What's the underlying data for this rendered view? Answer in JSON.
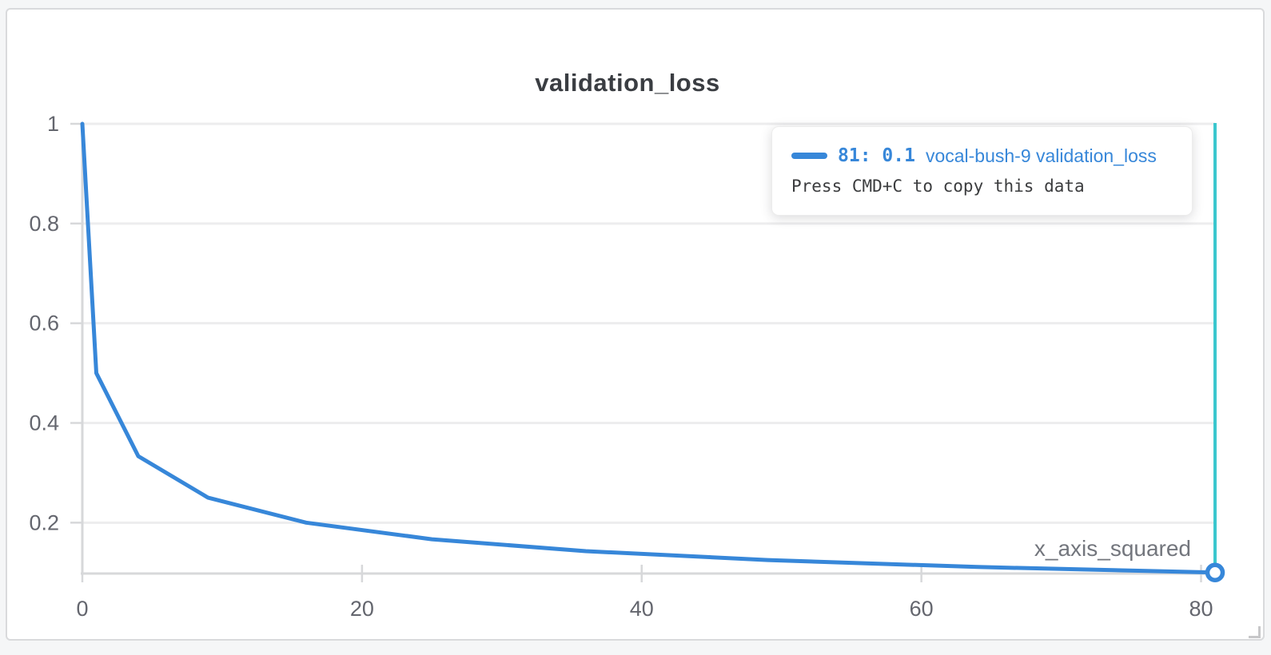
{
  "panel": {
    "title": "validation_loss"
  },
  "colors": {
    "line_blue": "#3787d9",
    "crosshair_cyan": "#3bc7ce",
    "grid": "#ededee",
    "axis": "#d7d8da",
    "tick_text": "#64666e"
  },
  "tooltip": {
    "value_text": "81: 0.1",
    "series_text": "vocal-bush-9 validation_loss",
    "hint": "Press CMD+C to copy this data",
    "swatch_color": "#3787d9",
    "text_color": "#3787d9"
  },
  "chart_data": {
    "type": "line",
    "title": "validation_loss",
    "xlabel": "x_axis_squared",
    "ylabel": "",
    "legend_position": "none",
    "grid": "horizontal",
    "xlim": [
      0,
      81
    ],
    "ylim": [
      0.098,
      1.0
    ],
    "x_ticks": [
      {
        "v": 0,
        "label": "0"
      },
      {
        "v": 20,
        "label": "20"
      },
      {
        "v": 40,
        "label": "40"
      },
      {
        "v": 60,
        "label": "60"
      },
      {
        "v": 80,
        "label": "80"
      }
    ],
    "y_ticks": [
      {
        "v": 0.2,
        "label": "0.2"
      },
      {
        "v": 0.4,
        "label": "0.4"
      },
      {
        "v": 0.6,
        "label": "0.6"
      },
      {
        "v": 0.8,
        "label": "0.8"
      },
      {
        "v": 1.0,
        "label": "1"
      }
    ],
    "series": [
      {
        "name": "vocal-bush-9",
        "metric": "validation_loss",
        "color": "#3787d9",
        "x": [
          0,
          1,
          4,
          9,
          16,
          25,
          36,
          49,
          64,
          81
        ],
        "values": [
          1,
          0.5,
          0.3333,
          0.25,
          0.2,
          0.1667,
          0.1429,
          0.125,
          0.1111,
          0.1
        ]
      }
    ],
    "cursor": {
      "x": 81,
      "y": 0.1
    }
  }
}
